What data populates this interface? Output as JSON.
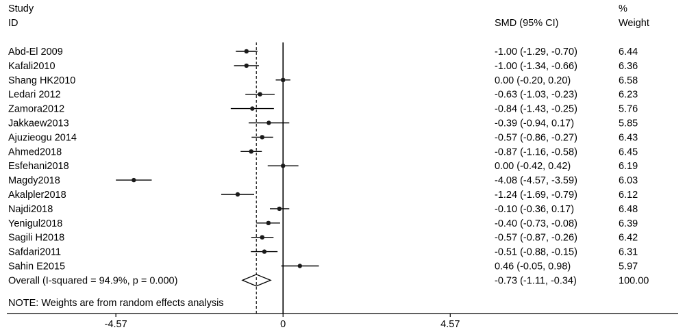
{
  "header": {
    "study_line1": "Study",
    "study_line2": "ID",
    "effect_label": "SMD (95% CI)",
    "weight_line1": "%",
    "weight_line2": "Weight"
  },
  "note": "NOTE: Weights are from random effects analysis",
  "colors": {
    "ink": "#000000",
    "marker": "#1a1a1a",
    "background": "#ffffff"
  },
  "chart_data": {
    "type": "forest",
    "x_ticks": [
      {
        "value": -4.57,
        "label": "-4.57"
      },
      {
        "value": 0,
        "label": "0"
      },
      {
        "value": 4.57,
        "label": "4.57"
      }
    ],
    "xlim": [
      -7.55,
      10.8
    ],
    "null_line": 0,
    "overall_line": -0.73,
    "studies": [
      {
        "label": "Abd-El 2009",
        "smd": -1.0,
        "lo": -1.29,
        "hi": -0.7,
        "ci_text": "-1.00 (-1.29, -0.70)",
        "weight": "6.44"
      },
      {
        "label": "Kafali2010",
        "smd": -1.0,
        "lo": -1.34,
        "hi": -0.66,
        "ci_text": "-1.00 (-1.34, -0.66)",
        "weight": "6.36"
      },
      {
        "label": "Shang HK2010",
        "smd": 0.0,
        "lo": -0.2,
        "hi": 0.2,
        "ci_text": "0.00 (-0.20, 0.20)",
        "weight": "6.58"
      },
      {
        "label": "Ledari 2012",
        "smd": -0.63,
        "lo": -1.03,
        "hi": -0.23,
        "ci_text": "-0.63 (-1.03, -0.23)",
        "weight": "6.23"
      },
      {
        "label": "Zamora2012",
        "smd": -0.84,
        "lo": -1.43,
        "hi": -0.25,
        "ci_text": "-0.84 (-1.43, -0.25)",
        "weight": "5.76"
      },
      {
        "label": "Jakkaew2013",
        "smd": -0.39,
        "lo": -0.94,
        "hi": 0.17,
        "ci_text": "-0.39 (-0.94, 0.17)",
        "weight": "5.85"
      },
      {
        "label": "Ajuzieogu 2014",
        "smd": -0.57,
        "lo": -0.86,
        "hi": -0.27,
        "ci_text": "-0.57 (-0.86, -0.27)",
        "weight": "6.43"
      },
      {
        "label": "Ahmed2018",
        "smd": -0.87,
        "lo": -1.16,
        "hi": -0.58,
        "ci_text": "-0.87 (-1.16, -0.58)",
        "weight": "6.45"
      },
      {
        "label": "Esfehani2018",
        "smd": 0.0,
        "lo": -0.42,
        "hi": 0.42,
        "ci_text": "0.00 (-0.42, 0.42)",
        "weight": "6.19"
      },
      {
        "label": "Magdy2018",
        "smd": -4.08,
        "lo": -4.57,
        "hi": -3.59,
        "ci_text": "-4.08 (-4.57, -3.59)",
        "weight": "6.03"
      },
      {
        "label": "Akalpler2018",
        "smd": -1.24,
        "lo": -1.69,
        "hi": -0.79,
        "ci_text": "-1.24 (-1.69, -0.79)",
        "weight": "6.12"
      },
      {
        "label": "Najdi2018",
        "smd": -0.1,
        "lo": -0.36,
        "hi": 0.17,
        "ci_text": "-0.10 (-0.36, 0.17)",
        "weight": "6.48"
      },
      {
        "label": "Yenigul2018",
        "smd": -0.4,
        "lo": -0.73,
        "hi": -0.08,
        "ci_text": "-0.40 (-0.73, -0.08)",
        "weight": "6.39"
      },
      {
        "label": "Sagili H2018",
        "smd": -0.57,
        "lo": -0.87,
        "hi": -0.26,
        "ci_text": "-0.57 (-0.87, -0.26)",
        "weight": "6.42"
      },
      {
        "label": "Safdari2011",
        "smd": -0.51,
        "lo": -0.88,
        "hi": -0.15,
        "ci_text": "-0.51 (-0.88, -0.15)",
        "weight": "6.31"
      },
      {
        "label": "Sahin E2015",
        "smd": 0.46,
        "lo": -0.05,
        "hi": 0.98,
        "ci_text": "0.46 (-0.05, 0.98)",
        "weight": "5.97"
      }
    ],
    "overall": {
      "label": "Overall  (I-squared = 94.9%, p = 0.000)",
      "smd": -0.73,
      "lo": -1.11,
      "hi": -0.34,
      "ci_text": "-0.73 (-1.11, -0.34)",
      "weight": "100.00"
    }
  }
}
